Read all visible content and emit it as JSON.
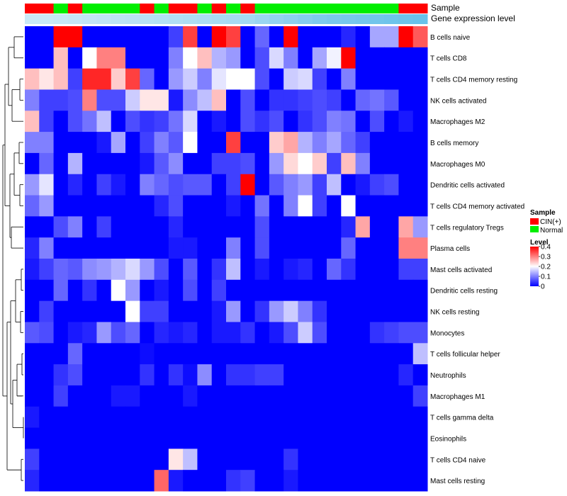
{
  "chart_data": {
    "type": "heatmap",
    "title": "",
    "annotation_labels": {
      "sample": "Sample",
      "gene": "Gene expression level"
    },
    "sample_groups": [
      "CIN(+)",
      "CIN(+)",
      "Normal",
      "CIN(+)",
      "Normal",
      "Normal",
      "Normal",
      "Normal",
      "CIN(+)",
      "Normal",
      "CIN(+)",
      "CIN(+)",
      "Normal",
      "CIN(+)",
      "Normal",
      "CIN(+)",
      "Normal",
      "Normal",
      "Normal",
      "Normal",
      "Normal",
      "Normal",
      "Normal",
      "Normal",
      "Normal",
      "Normal",
      "CIN(+)",
      "CIN(+)"
    ],
    "rows": [
      "B cells naive",
      "T cells CD8",
      "T cells CD4 memory resting",
      "NK cells activated",
      "Macrophages M2",
      "B cells memory",
      "Macrophages M0",
      "Dendritic cells activated",
      "T cells CD4 memory activated",
      "T cells regulatory  Tregs",
      "Plasma cells",
      "Mast cells activated",
      "Dendritic cells resting",
      "NK cells resting",
      "Monocytes",
      "T cells follicular helper",
      "Neutrophils",
      "Macrophages M1",
      "T cells gamma delta",
      "Eosinophils",
      "T cells CD4 naive",
      "Mast cells resting"
    ],
    "values": [
      [
        0,
        0,
        0.4,
        0.4,
        0,
        0,
        0,
        0,
        0,
        0,
        0.05,
        0.35,
        0,
        0.4,
        0.35,
        0,
        0.08,
        0,
        0.4,
        0,
        0,
        0,
        0.03,
        0,
        0.13,
        0.13,
        0.4,
        0.33
      ],
      [
        0,
        0,
        0.25,
        0,
        0.2,
        0.3,
        0.3,
        0,
        0,
        0,
        0.1,
        0.2,
        0.25,
        0.14,
        0.12,
        0,
        0.06,
        0.17,
        0.1,
        0,
        0.13,
        0.19,
        0.4,
        0,
        0,
        0,
        0,
        0
      ],
      [
        0.25,
        0.22,
        0.25,
        0.05,
        0.37,
        0.37,
        0.24,
        0.35,
        0.08,
        0,
        0.12,
        0.16,
        0.1,
        0.18,
        0.2,
        0.2,
        0.06,
        0,
        0.16,
        0.17,
        0.05,
        0,
        0.1,
        0,
        0,
        0,
        0,
        0
      ],
      [
        0.1,
        0.05,
        0.05,
        0.06,
        0.3,
        0.06,
        0.06,
        0.16,
        0.22,
        0.22,
        0.02,
        0.11,
        0.15,
        0.25,
        0,
        0.06,
        0,
        0.04,
        0.04,
        0.05,
        0.06,
        0.05,
        0,
        0.08,
        0.09,
        0.07,
        0,
        0
      ],
      [
        0.25,
        0.05,
        0,
        0.06,
        0.09,
        0.15,
        0,
        0.06,
        0.04,
        0.05,
        0.09,
        0.17,
        0,
        0.02,
        0,
        0.06,
        0.04,
        0.06,
        0,
        0.04,
        0.06,
        0.1,
        0.09,
        0,
        0.06,
        0,
        0.02,
        0
      ],
      [
        0.1,
        0.1,
        0,
        0,
        0,
        0.02,
        0.13,
        0,
        0.05,
        0.1,
        0.07,
        0.2,
        0,
        0,
        0.35,
        0,
        0,
        0.24,
        0.27,
        0.14,
        0.1,
        0.13,
        0.08,
        0.05,
        0,
        0,
        0,
        0
      ],
      [
        0,
        0.08,
        0,
        0.14,
        0,
        0,
        0,
        0,
        0.02,
        0.07,
        0.11,
        0,
        0,
        0.05,
        0.05,
        0.06,
        0,
        0.12,
        0.23,
        0.2,
        0.24,
        0.05,
        0.25,
        0.1,
        0,
        0,
        0,
        0
      ],
      [
        0.12,
        0.18,
        0,
        0.03,
        0,
        0.05,
        0.02,
        0,
        0.1,
        0.08,
        0.06,
        0.07,
        0.07,
        0,
        0.05,
        0.4,
        0,
        0.07,
        0.1,
        0.12,
        0.05,
        0.15,
        0,
        0.02,
        0.05,
        0.06,
        0,
        0
      ],
      [
        0.08,
        0.12,
        0,
        0,
        0,
        0,
        0,
        0,
        0,
        0.03,
        0.06,
        0,
        0,
        0,
        0.02,
        0,
        0.09,
        0,
        0.1,
        0.2,
        0.05,
        0,
        0.2,
        0,
        0,
        0,
        0,
        0
      ],
      [
        0,
        0,
        0.06,
        0.1,
        0,
        0.05,
        0,
        0,
        0,
        0,
        0.03,
        0,
        0,
        0,
        0,
        0,
        0.06,
        0,
        0,
        0,
        0,
        0,
        0.03,
        0.27,
        0,
        0,
        0.27,
        0.12
      ],
      [
        0.03,
        0.1,
        0,
        0,
        0,
        0,
        0,
        0,
        0,
        0,
        0.02,
        0.02,
        0,
        0,
        0.1,
        0,
        0.06,
        0,
        0,
        0,
        0,
        0,
        0.08,
        0,
        0,
        0,
        0.3,
        0.3
      ],
      [
        0.02,
        0.05,
        0.08,
        0.07,
        0.11,
        0.12,
        0.14,
        0.17,
        0.12,
        0.06,
        0,
        0.07,
        0,
        0.04,
        0.15,
        0,
        0.02,
        0,
        0.02,
        0.03,
        0,
        0.08,
        0.04,
        0,
        0,
        0,
        0.05,
        0.05
      ],
      [
        0,
        0,
        0.08,
        0,
        0.04,
        0,
        0.2,
        0.12,
        0,
        0.02,
        0,
        0.06,
        0,
        0.05,
        0,
        0,
        0,
        0,
        0,
        0,
        0,
        0,
        0,
        0,
        0,
        0,
        0,
        0
      ],
      [
        0,
        0.05,
        0,
        0,
        0,
        0,
        0,
        0.2,
        0.05,
        0.05,
        0,
        0,
        0,
        0.02,
        0.12,
        0,
        0.04,
        0.12,
        0.16,
        0.1,
        0.04,
        0,
        0,
        0,
        0,
        0,
        0,
        0
      ],
      [
        0.07,
        0.06,
        0,
        0.02,
        0.03,
        0.12,
        0.06,
        0.08,
        0,
        0.03,
        0.02,
        0.03,
        0,
        0.02,
        0.02,
        0.04,
        0,
        0.02,
        0.06,
        0.16,
        0.06,
        0,
        0,
        0,
        0.04,
        0.05,
        0.06,
        0.06
      ],
      [
        0,
        0,
        0,
        0.08,
        0,
        0,
        0,
        0,
        0.01,
        0,
        0,
        0,
        0,
        0,
        0,
        0,
        0,
        0,
        0,
        0,
        0,
        0,
        0,
        0,
        0,
        0,
        0,
        0.15
      ],
      [
        0,
        0,
        0.04,
        0.06,
        0,
        0,
        0,
        0,
        0.04,
        0,
        0.04,
        0.01,
        0.11,
        0,
        0.04,
        0.04,
        0.05,
        0.05,
        0,
        0,
        0,
        0,
        0,
        0,
        0,
        0,
        0.03,
        0
      ],
      [
        0,
        0,
        0.05,
        0,
        0,
        0,
        0.02,
        0.02,
        0,
        0,
        0,
        0.02,
        0,
        0,
        0,
        0,
        0,
        0,
        0,
        0,
        0,
        0,
        0,
        0,
        0,
        0,
        0,
        0.05
      ],
      [
        0.02,
        0,
        0,
        0,
        0,
        0,
        0,
        0,
        0,
        0,
        0,
        0,
        0,
        0,
        0,
        0,
        0,
        0,
        0,
        0,
        0,
        0,
        0,
        0,
        0,
        0,
        0,
        0
      ],
      [
        0,
        0,
        0,
        0,
        0,
        0,
        0,
        0,
        0,
        0,
        0,
        0,
        0,
        0,
        0,
        0,
        0,
        0,
        0,
        0,
        0,
        0,
        0,
        0,
        0,
        0,
        0,
        0
      ],
      [
        0.05,
        0,
        0,
        0,
        0,
        0,
        0,
        0,
        0,
        0,
        0.22,
        0.15,
        0,
        0,
        0,
        0,
        0,
        0,
        0.04,
        0,
        0,
        0,
        0,
        0,
        0,
        0,
        0,
        0
      ],
      [
        0.03,
        0,
        0,
        0,
        0,
        0,
        0,
        0,
        0,
        0.32,
        0.02,
        0,
        0,
        0,
        0.04,
        0.05,
        0,
        0,
        0.02,
        0,
        0,
        0,
        0,
        0,
        0,
        0,
        0,
        0
      ]
    ],
    "gene_expression_level": [
      0.2,
      0.2,
      0.22,
      0.24,
      0.26,
      0.28,
      0.3,
      0.32,
      0.34,
      0.36,
      0.38,
      0.4,
      0.42,
      0.44,
      0.46,
      0.48,
      0.55,
      0.6,
      0.65,
      0.7,
      0.75,
      0.78,
      0.8,
      0.82,
      0.84,
      0.86,
      0.88,
      0.9
    ],
    "legend": {
      "sample_title": "Sample",
      "sample_entries": [
        {
          "label": "CIN(+)",
          "color": "#ff0000"
        },
        {
          "label": "Normal",
          "color": "#00ee00"
        }
      ],
      "level_title": "Level",
      "level_ticks": [
        "0.4",
        "0.3",
        "0.2",
        "0.1",
        "0"
      ],
      "level_range": [
        0,
        0.4
      ]
    },
    "colors": {
      "low": "#0000ff",
      "mid": "#ffffff",
      "high": "#ff0000",
      "gene_low": "#e6f4fb",
      "gene_high": "#5bbce8",
      "cin": "#ff0000",
      "normal": "#00ee00",
      "dendrogram": "#000000"
    }
  }
}
